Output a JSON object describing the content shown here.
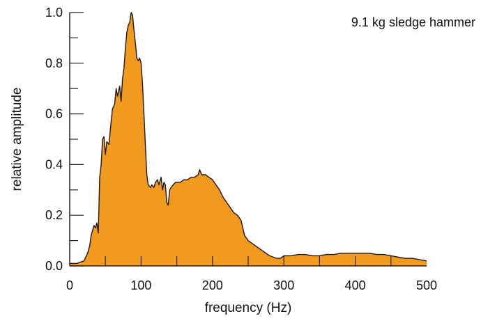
{
  "chart_data": {
    "type": "area",
    "xlabel": "frequency (Hz)",
    "ylabel": "relative amplitude",
    "annotation": "9.1 kg sledge hammer",
    "xlim": [
      0,
      500
    ],
    "ylim": [
      0,
      1.0
    ],
    "x_ticks": [
      0,
      100,
      200,
      300,
      400,
      500
    ],
    "y_ticks": [
      0.0,
      0.2,
      0.4,
      0.6,
      0.8,
      1.0
    ],
    "x_tick_labels": [
      "0",
      "100",
      "200",
      "300",
      "400",
      "500"
    ],
    "y_tick_labels": [
      "0.0",
      "0.2",
      "0.4",
      "0.6",
      "0.8",
      "1.0"
    ],
    "fill_color": "#F29A1E",
    "line_color": "#1a1a1a",
    "series": [
      {
        "x": [
          0,
          10,
          20,
          25,
          28,
          30,
          32,
          34,
          36,
          38,
          40,
          42,
          44,
          46,
          48,
          50,
          52,
          55,
          58,
          60,
          63,
          65,
          67,
          70,
          72,
          74,
          76,
          78,
          80,
          82,
          84,
          86,
          88,
          90,
          92,
          94,
          96,
          98,
          100,
          102,
          104,
          106,
          108,
          110,
          113,
          115,
          118,
          120,
          123,
          125,
          128,
          130,
          132,
          134,
          136,
          138,
          140,
          142,
          145,
          148,
          150,
          155,
          160,
          165,
          170,
          175,
          180,
          182,
          185,
          190,
          195,
          200,
          205,
          210,
          215,
          220,
          225,
          230,
          235,
          240,
          245,
          250,
          255,
          260,
          270,
          280,
          290,
          295,
          300,
          310,
          320,
          330,
          340,
          350,
          360,
          370,
          380,
          390,
          400,
          410,
          420,
          430,
          440,
          450,
          460,
          470,
          480,
          490,
          500
        ],
        "y": [
          0.01,
          0.01,
          0.02,
          0.05,
          0.08,
          0.12,
          0.14,
          0.16,
          0.15,
          0.17,
          0.13,
          0.35,
          0.4,
          0.5,
          0.51,
          0.44,
          0.49,
          0.48,
          0.57,
          0.62,
          0.64,
          0.7,
          0.67,
          0.71,
          0.65,
          0.74,
          0.78,
          0.86,
          0.92,
          0.95,
          0.96,
          1.0,
          0.99,
          0.93,
          0.88,
          0.82,
          0.81,
          0.82,
          0.8,
          0.72,
          0.6,
          0.48,
          0.36,
          0.32,
          0.31,
          0.32,
          0.31,
          0.33,
          0.34,
          0.32,
          0.35,
          0.3,
          0.33,
          0.32,
          0.25,
          0.24,
          0.3,
          0.31,
          0.32,
          0.33,
          0.33,
          0.33,
          0.34,
          0.34,
          0.35,
          0.35,
          0.36,
          0.38,
          0.36,
          0.36,
          0.35,
          0.34,
          0.32,
          0.3,
          0.27,
          0.25,
          0.23,
          0.21,
          0.2,
          0.18,
          0.12,
          0.1,
          0.09,
          0.08,
          0.06,
          0.04,
          0.03,
          0.03,
          0.04,
          0.04,
          0.045,
          0.045,
          0.04,
          0.04,
          0.045,
          0.045,
          0.05,
          0.05,
          0.05,
          0.05,
          0.05,
          0.045,
          0.045,
          0.04,
          0.035,
          0.03,
          0.03,
          0.025,
          0.02
        ]
      }
    ]
  }
}
